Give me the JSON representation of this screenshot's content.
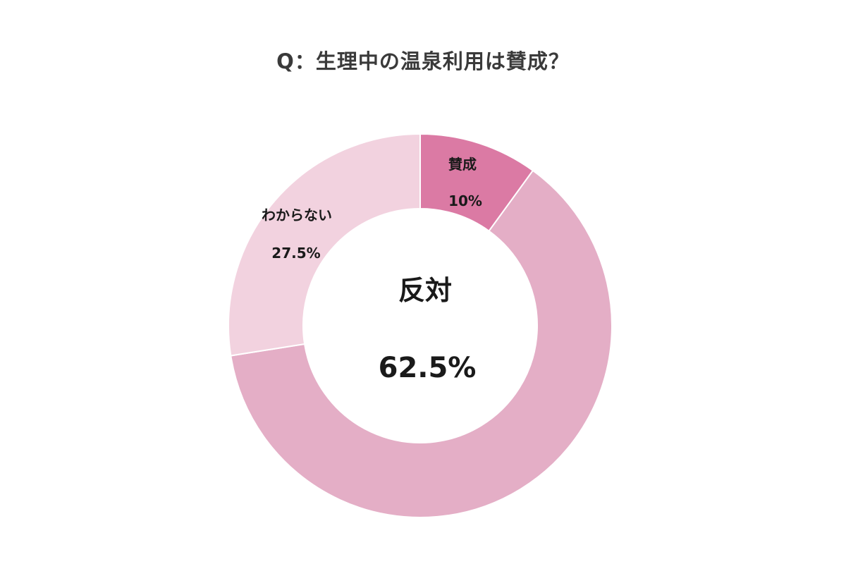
{
  "chart_data": {
    "type": "pie",
    "subtype": "donut",
    "title": "Q：生理中の温泉利用は賛成？",
    "categories": [
      "賛成",
      "反対",
      "わからない"
    ],
    "values": [
      10,
      62.5,
      27.5
    ],
    "value_labels": [
      "10%",
      "62.5%",
      "27.5%"
    ],
    "colors": [
      "#db7aa4",
      "#e4aec6",
      "#f2d2df"
    ],
    "legend": "none",
    "start_angle": "12 o'clock, clockwise"
  }
}
